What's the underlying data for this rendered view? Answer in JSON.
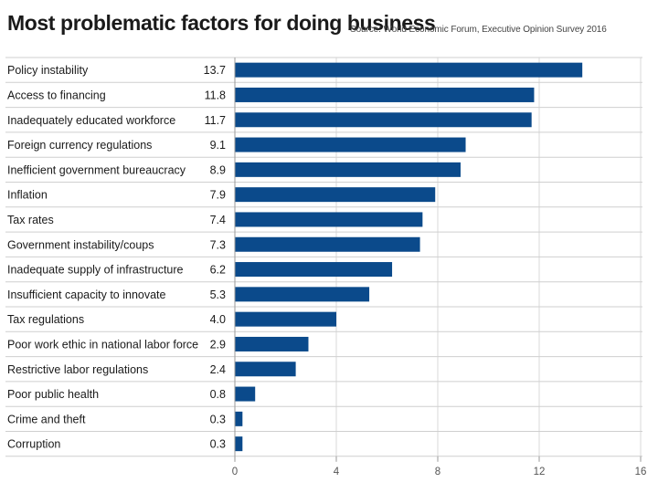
{
  "header": {
    "title": "Most problematic factors for doing business",
    "source": "Source: World Economic Forum, Executive Opinion Survey 2016"
  },
  "colors": {
    "bar": "#0b4a8b",
    "row_divider": "#cfcfcf",
    "gridline": "#d9d9d9",
    "axis": "#9a9a9a"
  },
  "chart_data": {
    "type": "bar",
    "orientation": "horizontal",
    "categories": [
      "Policy instability",
      "Access to financing",
      "Inadequately educated workforce",
      "Foreign currency regulations",
      "Inefficient government bureaucracy",
      "Inflation",
      "Tax rates",
      "Government instability/coups",
      "Inadequate supply of infrastructure",
      "Insufficient capacity to innovate",
      "Tax regulations",
      "Poor work ethic in national labor force",
      "Restrictive labor regulations",
      "Poor public health",
      "Crime and theft",
      "Corruption"
    ],
    "values": [
      13.7,
      11.8,
      11.7,
      9.1,
      8.9,
      7.9,
      7.4,
      7.3,
      6.2,
      5.3,
      4.0,
      2.9,
      2.4,
      0.8,
      0.3,
      0.3
    ],
    "value_labels": [
      "13.7",
      "11.8",
      "11.7",
      "9.1",
      "8.9",
      "7.9",
      "7.4",
      "7.3",
      "6.2",
      "5.3",
      "4.0",
      "2.9",
      "2.4",
      "0.8",
      "0.3",
      "0.3"
    ],
    "xlim": [
      0,
      16
    ],
    "xticks": [
      0,
      4,
      8,
      12,
      16
    ],
    "xtick_labels": [
      "0",
      "4",
      "8",
      "12",
      "16"
    ],
    "grid": "vertical"
  }
}
